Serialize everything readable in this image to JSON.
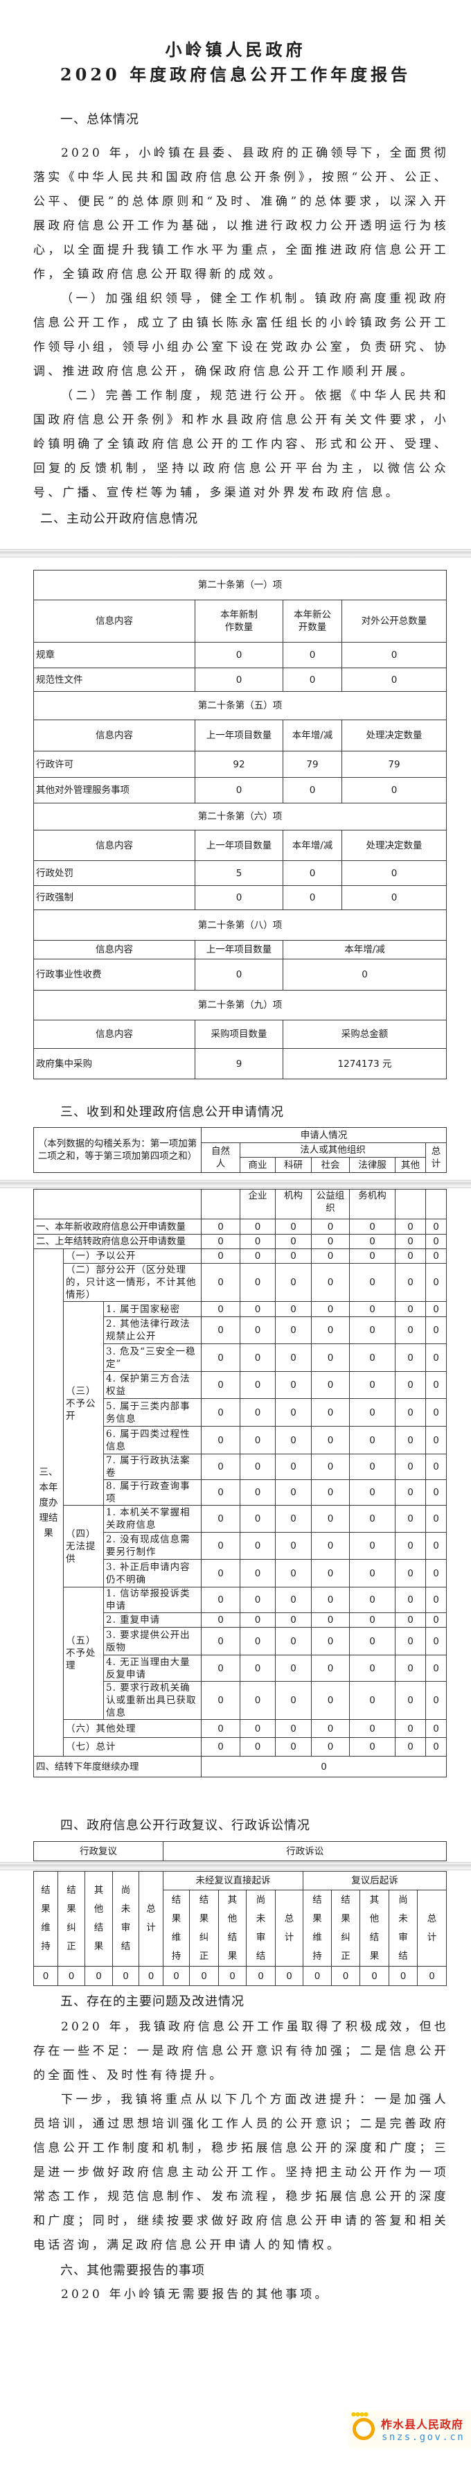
{
  "title": {
    "line1": "小岭镇人民政府",
    "line2": "2020 年度政府信息公开工作年度报告"
  },
  "section1": {
    "heading": "一、总体情况",
    "paragraphs": [
      "2020 年，小岭镇在县委、县政府的正确领导下，全面贯彻落实《中华人民共和国政府信息公开条例》，按照“公开、公正、公平、便民”的总体原则和“及时、准确”的总体要求，以深入开展政府信息公开工作为基础，以推进行政权力公开透明运行为核心，以全面提升我镇工作水平为重点，全面推进政府信息公开工作，全镇政府信息公开取得新的成效。",
      "（一）加强组织领导，健全工作机制。镇政府高度重视政府信息公开工作，成立了由镇长陈永富任组长的小岭镇政务公开工作领导小组，领导小组办公室下设在党政办公室，负责研究、协调、推进政府信息公开，确保政府信息公开工作顺利开展。",
      "（二）完善工作制度，规范进行公开。依据《中华人民共和国政府信息公开条例》和柞水县政府信息公开有关文件要求，小岭镇明确了全镇政府信息公开的工作内容、形式和公开、受理、回复的反馈机制，坚持以政府信息公开平台为主，以微信公众号、广播、宣传栏等为辅，多渠道对外界发布政府信息。"
    ]
  },
  "section2": {
    "heading": "二、主动公开政府信息情况",
    "blocks": [
      {
        "title": "第二十条第（一）项",
        "headers": [
          "信息内容",
          "本年新制作数量",
          "本年新公开数量",
          "对外公开总数量"
        ],
        "rows": [
          [
            "规章",
            "0",
            "0",
            "0"
          ],
          [
            "规范性文件",
            "0",
            "0",
            "0"
          ]
        ]
      },
      {
        "title": "第二十条第（五）项",
        "headers": [
          "信息内容",
          "上一年项目数量",
          "本年增/减",
          "处理决定数量"
        ],
        "rows": [
          [
            "行政许可",
            "92",
            "79",
            "79"
          ],
          [
            "其他对外管理服务事项",
            "0",
            "0",
            "0"
          ]
        ]
      },
      {
        "title": "第二十条第（六）项",
        "headers": [
          "信息内容",
          "上一年项目数量",
          "本年增/减",
          "处理决定数量"
        ],
        "rows": [
          [
            "行政处罚",
            "5",
            "0",
            "0"
          ],
          [
            "行政强制",
            "0",
            "0",
            "0"
          ]
        ]
      },
      {
        "title": "第二十条第（八）项",
        "headers": [
          "信息内容",
          "上一年项目数量",
          "本年增/减"
        ],
        "rows": [
          [
            "行政事业性收费",
            "0",
            "0"
          ]
        ]
      },
      {
        "title": "第二十条第（九）项",
        "headers": [
          "信息内容",
          "采购项目数量",
          "采购总金额"
        ],
        "rows": [
          [
            "政府集中采购",
            "9",
            "1274173 元"
          ]
        ]
      }
    ]
  },
  "section3": {
    "heading": "三、收到和处理政府信息公开申请情况",
    "note": "（本列数据的勾稽关系为：第一项加第二项之和，等于第三项加第四项之和）",
    "applicant_header": "申请人情况",
    "natural_person": "自然人",
    "legal_entity": "法人或其他组织",
    "sub_columns_part1": [
      "商业",
      "科研",
      "社会",
      "法律服",
      "其他"
    ],
    "sub_columns_part2": [
      "企业",
      "机构",
      "公益组织",
      "务机构"
    ],
    "total": "总计",
    "new_received": {
      "label": "一、本年新收政府信息公开申请数量",
      "values": [
        "0",
        "0",
        "0",
        "0",
        "0",
        "0",
        "0"
      ]
    },
    "carried_over": {
      "label": "二、上年结转政府信息公开申请数量",
      "values": [
        "0",
        "0",
        "0",
        "0",
        "0",
        "0",
        "0"
      ]
    },
    "results_label": "三、本年度办理结果",
    "results": [
      {
        "label": "（一）予以公开",
        "values": [
          "0",
          "0",
          "0",
          "0",
          "0",
          "0",
          "0"
        ]
      },
      {
        "label": "（二）部分公开（区分处理的，只计这一情形，不计其他情形）",
        "values": [
          "0",
          "0",
          "0",
          "0",
          "0",
          "0",
          "0"
        ]
      },
      {
        "group": "（三）不予公开",
        "items": [
          {
            "label": "1. 属于国家秘密",
            "values": [
              "0",
              "0",
              "0",
              "0",
              "0",
              "0",
              "0"
            ]
          },
          {
            "label": "2. 其他法律行政法规禁止公开",
            "values": [
              "0",
              "0",
              "0",
              "0",
              "0",
              "0",
              "0"
            ]
          },
          {
            "label": "3. 危及“三安全一稳定”",
            "values": [
              "0",
              "0",
              "0",
              "0",
              "0",
              "0",
              "0"
            ]
          },
          {
            "label": "4. 保护第三方合法权益",
            "values": [
              "0",
              "0",
              "0",
              "0",
              "0",
              "0",
              "0"
            ]
          },
          {
            "label": "5. 属于三类内部事务信息",
            "values": [
              "0",
              "0",
              "0",
              "0",
              "0",
              "0",
              "0"
            ]
          },
          {
            "label": "6. 属于四类过程性信息",
            "values": [
              "0",
              "0",
              "0",
              "0",
              "0",
              "0",
              "0"
            ]
          },
          {
            "label": "7. 属于行政执法案卷",
            "values": [
              "0",
              "0",
              "0",
              "0",
              "0",
              "0",
              "0"
            ]
          },
          {
            "label": "8. 属于行政查询事项",
            "values": [
              "0",
              "0",
              "0",
              "0",
              "0",
              "0",
              "0"
            ]
          }
        ]
      },
      {
        "group": "（四）无法提供",
        "items": [
          {
            "label": "1. 本机关不掌握相关政府信息",
            "values": [
              "0",
              "0",
              "0",
              "0",
              "0",
              "0",
              "0"
            ]
          },
          {
            "label": "2. 没有现成信息需要另行制作",
            "values": [
              "0",
              "0",
              "0",
              "0",
              "0",
              "0",
              "0"
            ]
          },
          {
            "label": "3. 补正后申请内容仍不明确",
            "values": [
              "0",
              "0",
              "0",
              "0",
              "0",
              "0",
              "0"
            ]
          }
        ]
      },
      {
        "group": "（五）不予处理",
        "items": [
          {
            "label": "1. 信访举报投诉类申请",
            "values": [
              "0",
              "0",
              "0",
              "0",
              "0",
              "0",
              "0"
            ]
          },
          {
            "label": "2. 重复申请",
            "values": [
              "0",
              "0",
              "0",
              "0",
              "0",
              "0",
              "0"
            ]
          },
          {
            "label": "3. 要求提供公开出版物",
            "values": [
              "0",
              "0",
              "0",
              "0",
              "0",
              "0",
              "0"
            ]
          },
          {
            "label": "4. 无正当理由大量反复申请",
            "values": [
              "0",
              "0",
              "0",
              "0",
              "0",
              "0",
              "0"
            ]
          },
          {
            "label": "5. 要求行政机关确认或重新出具已获取信息",
            "values": [
              "0",
              "0",
              "0",
              "0",
              "0",
              "0",
              "0"
            ]
          }
        ]
      },
      {
        "label": "（六）其他处理",
        "values": [
          "0",
          "0",
          "0",
          "0",
          "0",
          "0",
          "0"
        ]
      },
      {
        "label": "（七）总计",
        "values": [
          "0",
          "0",
          "0",
          "0",
          "0",
          "0",
          "0"
        ]
      }
    ],
    "carry_next": {
      "label": "四、结转下年度继续办理",
      "value": "0"
    }
  },
  "section4": {
    "heading": "四、政府信息公开行政复议、行政诉讼情况",
    "review_header": "行政复议",
    "litigation_header": "行政诉讼",
    "direct_suit": "未经复议直接起诉",
    "after_review_suit": "复议后起诉",
    "columns": [
      "结果维持",
      "结果纠正",
      "其他结果",
      "尚未审结",
      "总计"
    ],
    "review_values": [
      "0",
      "0",
      "0",
      "0",
      "0"
    ],
    "direct_values": [
      "0",
      "0",
      "0",
      "0",
      "0"
    ],
    "after_review_values": [
      "0",
      "0",
      "0",
      "0",
      "0"
    ]
  },
  "section5": {
    "heading": "五、存在的主要问题及改进情况",
    "paragraphs": [
      "2020 年，我镇政府信息公开工作虽取得了积极成效，但也存在一些不足：一是政府信息公开意识有待加强；二是信息公开的全面性、及时性有待提升。",
      "下一步，我镇将重点从以下几个方面改进提升：一是加强人员培训，通过思想培训强化工作人员的公开意识；二是完善政府信息公开工作制度和机制，稳步拓展信息公开的深度和广度；三是进一步做好政府信息主动公开工作。坚持把主动公开作为一项常态工作，规范信息制作、发布流程，稳步拓展信息公开的深度和广度；同时，继续按要求做好政府信息公开申请的答复和相关电话咨询，满足政府信息公开申请人的知情权。"
    ]
  },
  "section6": {
    "heading": "六、其他需要报告的事项",
    "paragraph": "2020 年小岭镇无需要报告的其他事项。"
  },
  "watermark": {
    "name": "柞水县人民政府",
    "url": "snzs.gov.cn",
    "icon": "sun-logo-icon",
    "name_color": "#d9261c",
    "url_color": "#3a8fd8"
  }
}
